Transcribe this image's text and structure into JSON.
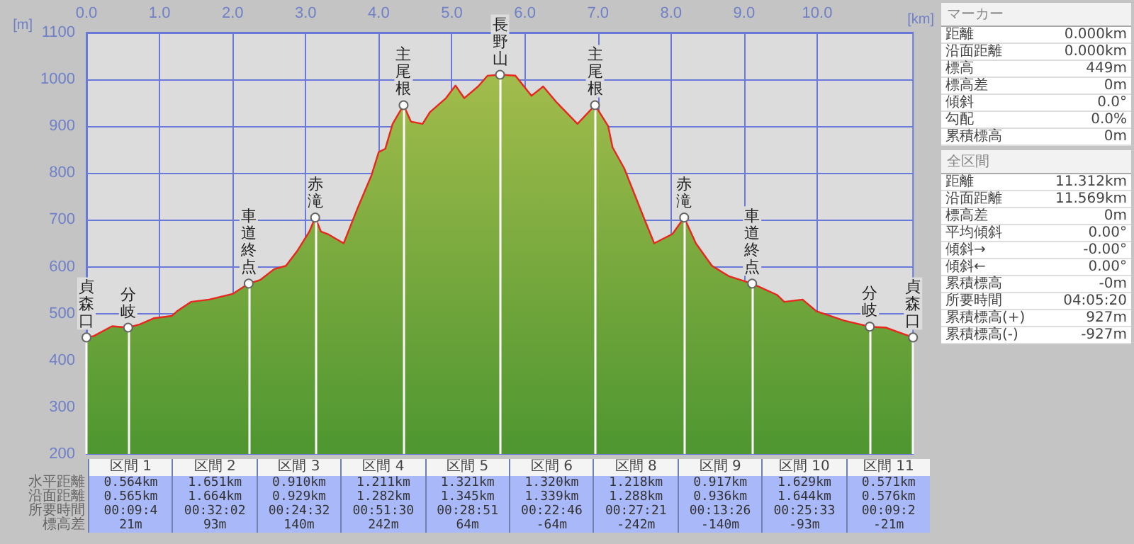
{
  "chart_data": [
    {
      "type": "area",
      "xlabel": "[km]",
      "ylabel": "[m]",
      "xlim": [
        0,
        11.312
      ],
      "ylim": [
        200,
        1100
      ],
      "xticks": [
        {
          "value": 0,
          "label": "0.0"
        },
        {
          "value": 1,
          "label": "1.0"
        },
        {
          "value": 2,
          "label": "2.0"
        },
        {
          "value": 3,
          "label": "3.0"
        },
        {
          "value": 4,
          "label": "4.0"
        },
        {
          "value": 5,
          "label": "5.0"
        },
        {
          "value": 6,
          "label": "6.0"
        },
        {
          "value": 7,
          "label": "7.0"
        },
        {
          "value": 8,
          "label": "8.0"
        },
        {
          "value": 9,
          "label": "9.0"
        },
        {
          "value": 10,
          "label": "10.0"
        }
      ],
      "yticks": [
        200,
        300,
        400,
        500,
        600,
        700,
        800,
        900,
        1000,
        1100
      ],
      "grid": true,
      "series": [
        {
          "color": "#e8281e",
          "x": [
            0,
            0.1,
            0.35,
            0.57,
            0.73,
            0.92,
            1.17,
            1.24,
            1.43,
            1.68,
            1.87,
            2.0,
            2.22,
            2.38,
            2.57,
            2.73,
            2.89,
            3.05,
            3.13,
            3.21,
            3.3,
            3.52,
            3.71,
            3.9,
            4.0,
            4.09,
            4.19,
            4.34,
            4.44,
            4.6,
            4.7,
            4.92,
            5.05,
            5.17,
            5.36,
            5.49,
            5.66,
            5.87,
            6.09,
            6.25,
            6.44,
            6.72,
            6.96,
            7.14,
            7.2,
            7.36,
            7.64,
            7.77,
            8.02,
            8.18,
            8.34,
            8.56,
            8.79,
            9.11,
            9.45,
            9.55,
            9.8,
            9.99,
            10.37,
            10.72,
            10.94,
            11.312
          ],
          "values": [
            449,
            452,
            473,
            470,
            477,
            490,
            495,
            505,
            525,
            530,
            537,
            542,
            564,
            572,
            595,
            602,
            635,
            675,
            705,
            675,
            670,
            650,
            725,
            795,
            845,
            852,
            905,
            945,
            910,
            905,
            930,
            960,
            987,
            960,
            985,
            1008,
            1010,
            1008,
            965,
            985,
            950,
            905,
            945,
            900,
            855,
            810,
            700,
            650,
            670,
            705,
            650,
            602,
            580,
            564,
            540,
            525,
            530,
            505,
            485,
            472,
            470,
            449
          ]
        }
      ],
      "annotations": [
        {
          "text": "貞森口",
          "x": 0,
          "y": 449
        },
        {
          "text": "分岐",
          "x": 0.57,
          "y": 470
        },
        {
          "text": "車道終点",
          "x": 2.22,
          "y": 564
        },
        {
          "text": "赤滝",
          "x": 3.13,
          "y": 705
        },
        {
          "text": "主尾根",
          "x": 4.34,
          "y": 945
        },
        {
          "text": "長野山",
          "x": 5.66,
          "y": 1010
        },
        {
          "text": "主尾根",
          "x": 6.96,
          "y": 945
        },
        {
          "text": "赤滝",
          "x": 8.18,
          "y": 705
        },
        {
          "text": "車道終点",
          "x": 9.11,
          "y": 564
        },
        {
          "text": "分岐",
          "x": 10.72,
          "y": 472
        },
        {
          "text": "貞森口",
          "x": 11.312,
          "y": 449
        }
      ]
    },
    {
      "type": "other",
      "title": "マーカー",
      "annotations": [
        "距離",
        "0.000km",
        "沿面距離",
        "0.000km",
        "標高",
        "449m",
        "標高差",
        "0m",
        "傾斜",
        "0.0°",
        "勾配",
        "0.0%",
        "累積標高",
        "0m"
      ]
    },
    {
      "type": "other",
      "title": "全区間",
      "annotations": [
        "距離",
        "11.312km",
        "沿面距離",
        "11.569km",
        "標高差",
        "0m",
        "平均傾斜",
        "0.00°",
        "傾斜→",
        "-0.00°",
        "傾斜←",
        "0.00°",
        "累積標高",
        "-0m",
        "所要時間",
        "04:05:20",
        "累積標高(+)",
        "927m",
        "累積標高(-)",
        "-927m"
      ]
    },
    {
      "type": "other",
      "annotations": [
        "水平距離",
        "沿面距離",
        "所要時間",
        "標高差",
        "区間 1",
        "0.564km",
        "0.565km",
        "00:09:4",
        "21m",
        "区間 2",
        "1.651km",
        "1.664km",
        "00:32:02",
        "93m",
        "区間 3",
        "0.910km",
        "0.929km",
        "00:24:32",
        "140m",
        "区間 4",
        "1.211km",
        "1.282km",
        "00:51:30",
        "242m",
        "区間 5",
        "1.321km",
        "1.345km",
        "00:28:51",
        "64m",
        "区間 6",
        "1.320km",
        "1.339km",
        "00:22:46",
        "-64m",
        "区間 8",
        "1.218km",
        "1.288km",
        "00:27:21",
        "-242m",
        "区間 9",
        "0.917km",
        "0.936km",
        "00:13:26",
        "-140m",
        "区間 10",
        "1.629km",
        "1.644km",
        "00:25:33",
        "-93m",
        "区間 11",
        "0.571km",
        "0.576km",
        "00:09:2",
        "-21m"
      ]
    }
  ]
}
